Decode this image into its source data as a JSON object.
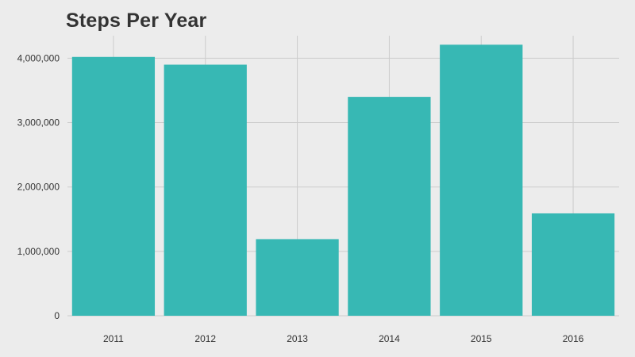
{
  "chart_data": {
    "type": "bar",
    "title": "Steps Per Year",
    "xlabel": "",
    "ylabel": "",
    "categories": [
      "2011",
      "2012",
      "2013",
      "2014",
      "2015",
      "2016"
    ],
    "values": [
      4020000,
      3900000,
      1190000,
      3400000,
      4210000,
      1590000
    ],
    "ylim": [
      0,
      4350000
    ],
    "yticks": [
      0,
      1000000,
      2000000,
      3000000,
      4000000
    ],
    "ytick_labels": [
      "0",
      "1,000,000",
      "2,000,000",
      "3,000,000",
      "4,000,000"
    ],
    "grid": true,
    "legend": "none"
  },
  "colors": {
    "bar": "#37b8b4",
    "grid": "#cccccc",
    "background": "#ececec",
    "text": "#333333"
  }
}
